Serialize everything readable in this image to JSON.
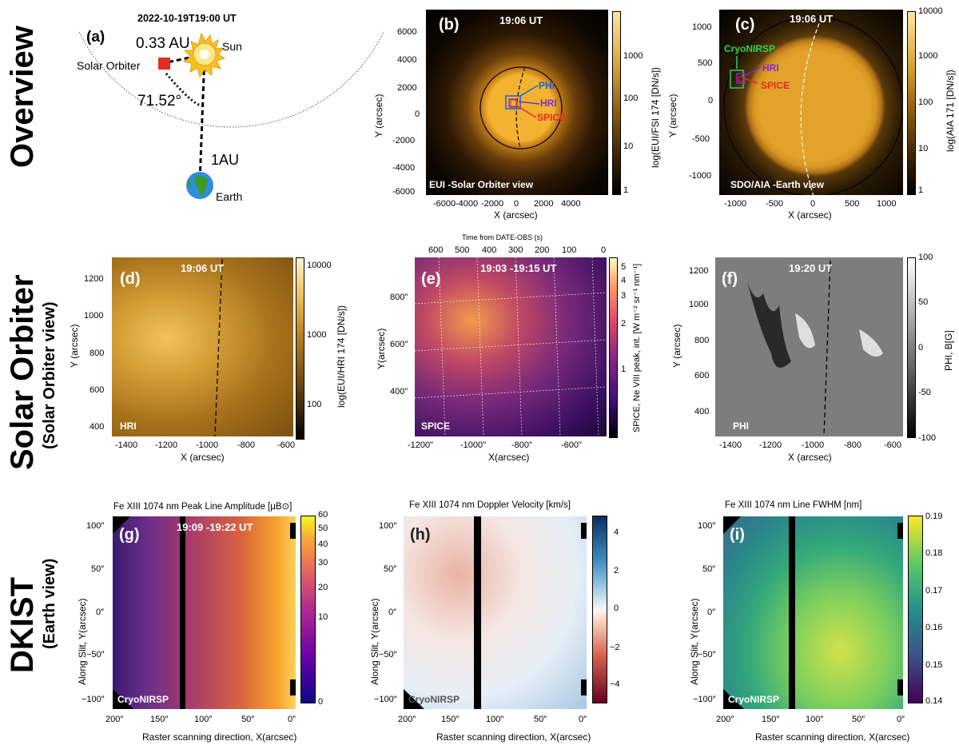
{
  "row_labels": [
    {
      "main": "Overview",
      "sub": ""
    },
    {
      "main": "Solar Orbiter",
      "sub": "(Solar Orbiter view)"
    },
    {
      "main": "DKIST",
      "sub": "(Earth view)"
    }
  ],
  "panel_a": {
    "label": "(a)",
    "date": "2022-10-19T19:00 UT",
    "dist": "0.33 AU",
    "sun": "Sun",
    "so": "Solar Orbiter",
    "angle": "71.52°",
    "au": "1AU",
    "earth": "Earth"
  },
  "panel_b": {
    "label": "(b)",
    "time": "19:06 UT",
    "name": "EUI -Solar Orbiter view",
    "phi": "PHI",
    "hri": "HRI",
    "spice": "SPICE",
    "xlabel": "X (arcsec)",
    "ylabel": "Y (arcsec)",
    "cbar_label": "log(EUI/FSI 174 [DN/s])",
    "xticks": [
      "-6000",
      "-4000",
      "-2000",
      "0",
      "2000",
      "4000"
    ],
    "yticks": [
      "6000",
      "4000",
      "2000",
      "0",
      "-2000",
      "-4000",
      "-6000"
    ],
    "cticks": [
      "1000",
      "100",
      "10",
      "1"
    ]
  },
  "panel_c": {
    "label": "(c)",
    "time": "19:06 UT",
    "name": "SDO/AIA -Earth view",
    "cryo": "CryoNIRSP",
    "hri": "HRI",
    "spice": "SPICE",
    "xlabel": "X (arcsec)",
    "ylabel": "Y (arcsec)",
    "cbar_label": "log(AIA 171 [DN/s])",
    "xticks": [
      "-1000",
      "-500",
      "0",
      "500",
      "1000"
    ],
    "yticks": [
      "1000",
      "500",
      "0",
      "-500",
      "-1000"
    ],
    "cticks": [
      "10000",
      "1000",
      "100",
      "10",
      "1"
    ]
  },
  "panel_d": {
    "label": "(d)",
    "time": "19:06 UT",
    "name": "HRI",
    "xlabel": "X (arcsec)",
    "ylabel": "Y (arcsec)",
    "cbar_label": "log(EUI/HRI 174 [DN/s])",
    "xticks": [
      "-1400",
      "-1200",
      "-1000",
      "-800",
      "-600"
    ],
    "yticks": [
      "1200",
      "1000",
      "800",
      "600",
      "400"
    ],
    "cticks": [
      "10000",
      "1000",
      "100"
    ]
  },
  "panel_e": {
    "label": "(e)",
    "time": "19:03 -19:15 UT",
    "name": "SPICE",
    "top_axis": "Time from DATE-OBS (s)",
    "xlabel": "X(arcsec)",
    "ylabel": "Y(arcsec)",
    "cbar_label": "SPICE, Ne VIII peak, int. [W m⁻² sr⁻¹ nm⁻¹]",
    "topticks": [
      "600",
      "500",
      "400",
      "300",
      "200",
      "100",
      "0"
    ],
    "xticks": [
      "-1200\"",
      "-1000\"",
      "-800\"",
      "-600\""
    ],
    "yticks": [
      "800\"",
      "600\"",
      "400\""
    ],
    "cticks": [
      "5",
      "4",
      "3",
      "2",
      "1"
    ]
  },
  "panel_f": {
    "label": "(f)",
    "time": "19:20 UT",
    "name": "PHI",
    "xlabel": "X (arcsec)",
    "ylabel": "Y (arcsec)",
    "cbar_label": "PHI, B[G]",
    "xticks": [
      "-1400",
      "-1200",
      "-1000",
      "-800",
      "-600"
    ],
    "yticks": [
      "1200",
      "1000",
      "800",
      "600",
      "400"
    ],
    "cticks": [
      "100",
      "50",
      "0",
      "-50",
      "-100"
    ]
  },
  "panel_g": {
    "label": "(g)",
    "time": "19:09 -19:22 UT",
    "name": "CryoNIRSP",
    "title": "Fe XIII 1074 nm Peak Line Amplitude [μB⊙]",
    "xlabel": "Raster scanning direction, X(arcsec)",
    "ylabel": "Along Slit, Y(arcsec)",
    "xticks": [
      "200″",
      "150″",
      "100″",
      "50″",
      "0″"
    ],
    "yticks": [
      "100″",
      "50″",
      "0″",
      "−50″",
      "−100″"
    ],
    "cticks": [
      "60",
      "50",
      "40",
      "30",
      "20",
      "10",
      "0"
    ]
  },
  "panel_h": {
    "label": "(h)",
    "name": "CryoNIRSP",
    "title": "Fe XIII 1074 nm Doppler Velocity [km/s]",
    "xlabel": "Raster scanning direction, X(arcsec)",
    "ylabel": "Along Slit, Y(arcsec)",
    "xticks": [
      "200″",
      "150″",
      "100″",
      "50″",
      "0″"
    ],
    "yticks": [
      "100″",
      "50″",
      "0″",
      "−50″",
      "−100″"
    ],
    "cticks": [
      "4",
      "2",
      "0",
      "−2",
      "−4"
    ]
  },
  "panel_i": {
    "label": "(i)",
    "name": "CryoNIRSP",
    "title": "Fe XIII 1074 nm Line FWHM [nm]",
    "xlabel": "Raster scanning direction, X(arcsec)",
    "ylabel": "Along Slit, Y(arcsec)",
    "xticks": [
      "200″",
      "150″",
      "100″",
      "50″",
      "0″"
    ],
    "yticks": [
      "100″",
      "50″",
      "0″",
      "−50″",
      "−100″"
    ],
    "cticks": [
      "0.19",
      "0.18",
      "0.17",
      "0.16",
      "0.15",
      "0.14"
    ]
  },
  "colors": {
    "sdo_gold": "#e9a527",
    "aia_gold": "#d8941e",
    "spice_purple": "#3b1062",
    "phi_grey": "#808080",
    "accent_blue": "#1b63d6",
    "accent_red": "#e32d20",
    "accent_green": "#2fd44a",
    "accent_purple": "#7a2bd6"
  }
}
